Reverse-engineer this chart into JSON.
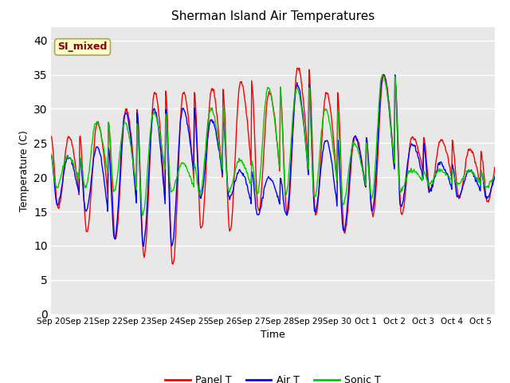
{
  "title": "Sherman Island Air Temperatures",
  "xlabel": "Time",
  "ylabel": "Temperature (C)",
  "ylim": [
    0,
    42
  ],
  "yticks": [
    0,
    5,
    10,
    15,
    20,
    25,
    30,
    35,
    40
  ],
  "bg_color": "#e8e8e8",
  "annotation_text": "SI_mixed",
  "annotation_color": "#8b0000",
  "annotation_bg": "#ffffcc",
  "line_colors": {
    "panel": "#ff0000",
    "air": "#0000ff",
    "sonic": "#00cc00"
  },
  "legend_labels": [
    "Panel T",
    "Air T",
    "Sonic T"
  ],
  "x_tick_labels": [
    "Sep 20",
    "Sep 21",
    "Sep 22",
    "Sep 23",
    "Sep 24",
    "Sep 25",
    "Sep 26",
    "Sep 27",
    "Sep 28",
    "Sep 29",
    "Sep 30",
    "Oct 1",
    "Oct 2",
    "Oct 3",
    "Oct 4",
    "Oct 5"
  ],
  "num_days": 15.5,
  "panel_peaks": [
    26.0,
    28.0,
    30.0,
    32.5,
    32.5,
    33.0,
    34.0,
    32.5,
    36.0,
    32.5,
    26.0,
    35.0,
    26.0,
    25.5,
    24.0,
    23.0
  ],
  "panel_troughs": [
    15.5,
    12.0,
    11.0,
    8.5,
    7.0,
    12.5,
    12.0,
    15.0,
    14.5,
    14.5,
    12.0,
    14.5,
    14.5,
    18.0,
    17.0,
    16.5
  ],
  "air_peaks": [
    23.0,
    24.5,
    29.5,
    30.0,
    30.0,
    28.5,
    21.0,
    20.0,
    33.5,
    25.5,
    26.0,
    35.0,
    25.0,
    22.0,
    21.0,
    20.5
  ],
  "air_troughs": [
    16.0,
    15.0,
    11.0,
    10.0,
    10.0,
    17.0,
    17.0,
    14.5,
    14.5,
    15.0,
    12.0,
    15.0,
    15.5,
    18.0,
    17.0,
    17.0
  ],
  "sonic_peaks": [
    23.0,
    28.0,
    28.0,
    29.5,
    22.0,
    30.0,
    22.5,
    33.0,
    33.0,
    30.0,
    25.0,
    35.0,
    21.0,
    21.0,
    21.0,
    20.5
  ],
  "sonic_troughs": [
    18.5,
    18.5,
    18.0,
    14.5,
    18.0,
    17.5,
    18.0,
    17.5,
    17.5,
    17.0,
    16.0,
    17.0,
    18.0,
    19.0,
    19.0,
    18.5
  ],
  "panel_peak_phase": 0.62,
  "panel_trough_phase": 0.25,
  "air_peak_phase": 0.6,
  "sonic_peak_phase": 0.58
}
